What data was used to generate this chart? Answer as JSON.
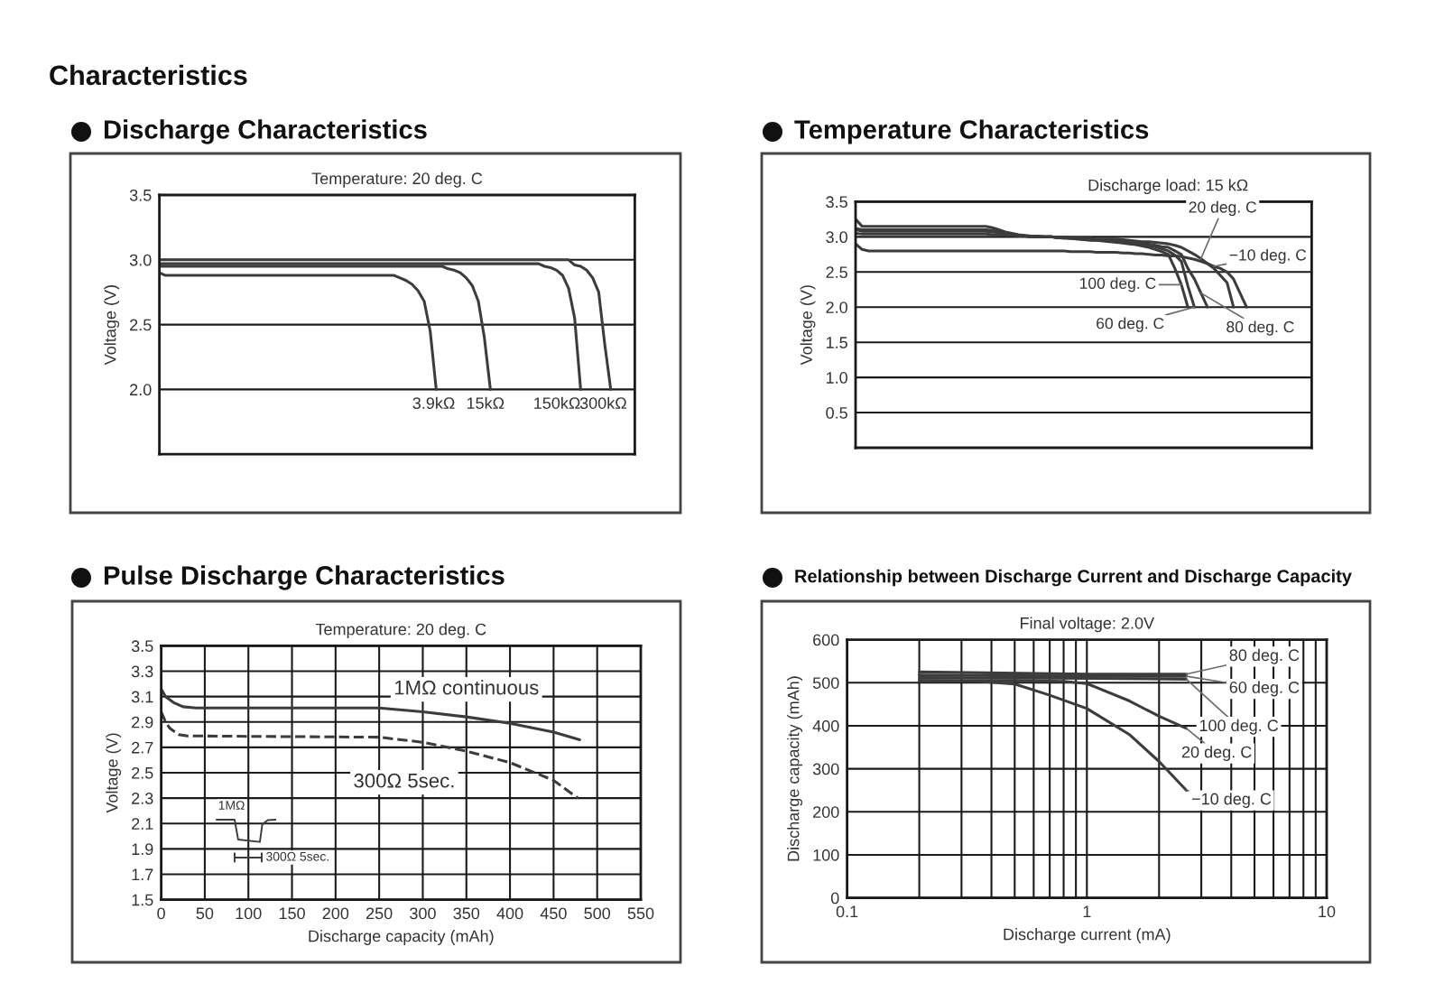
{
  "chart_data": [
    {
      "type": "other",
      "title": "Characteristics"
    },
    {
      "type": "line",
      "title": "Discharge Characteristics",
      "subtitle": "Temperature: 20 deg. C",
      "ylabel": "Voltage (V)",
      "categories": [
        null,
        null,
        null,
        null,
        null,
        null,
        null,
        null,
        null,
        null,
        null,
        null,
        null,
        null,
        null,
        null,
        null,
        null,
        null,
        null,
        null,
        null,
        null,
        null,
        null,
        null,
        null,
        null,
        null,
        null,
        null,
        null,
        null,
        null,
        null,
        null,
        null,
        null,
        null,
        null,
        null,
        null,
        null,
        null,
        null,
        null,
        null,
        null,
        null,
        null,
        null,
        null,
        null,
        null,
        null,
        null,
        null,
        null,
        null,
        null,
        null,
        null,
        null,
        null,
        null,
        null,
        null,
        null,
        null,
        null,
        null,
        null,
        null,
        null,
        null,
        null,
        null,
        null,
        null,
        null
      ],
      "series": [
        {
          "name": "3.9kΩ",
          "color": "#3c3c3c",
          "values": [
            2.9,
            2.88,
            2.88,
            2.88,
            2.88,
            2.88,
            2.88,
            2.88,
            2.88,
            2.88,
            2.88,
            2.88,
            2.88,
            2.88,
            2.88,
            2.88,
            2.88,
            2.88,
            2.88,
            2.88,
            2.88,
            2.88,
            2.88,
            2.88,
            2.88,
            2.88,
            2.88,
            2.88,
            2.88,
            2.88,
            2.88,
            2.88,
            2.88,
            2.88,
            2.88,
            2.88,
            2.88,
            2.88,
            2.88,
            2.88,
            2.86,
            2.84,
            2.81,
            2.76,
            2.68,
            2.45,
            2.0,
            null,
            null,
            null,
            null,
            null,
            null,
            null,
            null,
            null,
            null,
            null,
            null,
            null,
            null,
            null,
            null,
            null,
            null,
            null,
            null,
            null,
            null,
            null,
            null,
            null,
            null,
            null,
            null,
            null,
            null,
            null,
            null,
            null
          ]
        },
        {
          "name": "15kΩ",
          "color": "#3c3c3c",
          "values": [
            2.95,
            2.95,
            2.95,
            2.95,
            2.95,
            2.95,
            2.95,
            2.95,
            2.95,
            2.95,
            2.95,
            2.95,
            2.95,
            2.95,
            2.95,
            2.95,
            2.95,
            2.95,
            2.95,
            2.95,
            2.95,
            2.95,
            2.95,
            2.95,
            2.95,
            2.95,
            2.95,
            2.95,
            2.95,
            2.95,
            2.95,
            2.95,
            2.95,
            2.95,
            2.95,
            2.95,
            2.95,
            2.95,
            2.95,
            2.95,
            2.95,
            2.95,
            2.95,
            2.95,
            2.95,
            2.95,
            2.95,
            2.95,
            2.93,
            2.92,
            2.9,
            2.86,
            2.8,
            2.68,
            2.4,
            2.0,
            null,
            null,
            null,
            null,
            null,
            null,
            null,
            null,
            null,
            null,
            null,
            null,
            null,
            null,
            null,
            null,
            null,
            null,
            null,
            null,
            null,
            null,
            null,
            null
          ]
        },
        {
          "name": "150kΩ",
          "color": "#3c3c3c",
          "values": [
            2.97,
            2.97,
            2.97,
            2.97,
            2.97,
            2.97,
            2.97,
            2.97,
            2.97,
            2.97,
            2.97,
            2.97,
            2.97,
            2.97,
            2.97,
            2.97,
            2.97,
            2.97,
            2.97,
            2.97,
            2.97,
            2.97,
            2.97,
            2.97,
            2.97,
            2.97,
            2.97,
            2.97,
            2.97,
            2.97,
            2.97,
            2.97,
            2.97,
            2.97,
            2.97,
            2.97,
            2.97,
            2.97,
            2.97,
            2.97,
            2.97,
            2.97,
            2.97,
            2.97,
            2.97,
            2.97,
            2.97,
            2.97,
            2.97,
            2.97,
            2.97,
            2.97,
            2.97,
            2.97,
            2.97,
            2.97,
            2.97,
            2.97,
            2.97,
            2.97,
            2.97,
            2.97,
            2.97,
            2.97,
            2.95,
            2.94,
            2.92,
            2.88,
            2.78,
            2.55,
            2.0,
            null,
            null,
            null,
            null,
            null,
            null,
            null,
            null,
            null
          ]
        },
        {
          "name": "300kΩ",
          "color": "#3c3c3c",
          "values": [
            3.0,
            3.0,
            3.0,
            3.0,
            3.0,
            3.0,
            3.0,
            3.0,
            3.0,
            3.0,
            3.0,
            3.0,
            3.0,
            3.0,
            3.0,
            3.0,
            3.0,
            3.0,
            3.0,
            3.0,
            3.0,
            3.0,
            3.0,
            3.0,
            3.0,
            3.0,
            3.0,
            3.0,
            3.0,
            3.0,
            3.0,
            3.0,
            3.0,
            3.0,
            3.0,
            3.0,
            3.0,
            3.0,
            3.0,
            3.0,
            3.0,
            3.0,
            3.0,
            3.0,
            3.0,
            3.0,
            3.0,
            3.0,
            3.0,
            3.0,
            3.0,
            3.0,
            3.0,
            3.0,
            3.0,
            3.0,
            3.0,
            3.0,
            3.0,
            3.0,
            3.0,
            3.0,
            3.0,
            3.0,
            3.0,
            3.0,
            3.0,
            3.0,
            3.0,
            2.96,
            2.95,
            2.92,
            2.86,
            2.75,
            2.35,
            2.0,
            null,
            null,
            null,
            null
          ]
        }
      ],
      "ylim": [
        1.5,
        3.5
      ],
      "yticks": [
        {
          "value": 2,
          "label": "2.0"
        },
        2.5,
        {
          "value": 3,
          "label": "3.0"
        },
        3.5
      ],
      "grid": "y",
      "tick_labels": "y"
    },
    {
      "type": "line",
      "title": "Temperature Characteristics",
      "subtitle": "Discharge load: 15 kΩ",
      "ylabel": "Voltage (V)",
      "categories": [
        null,
        null,
        null,
        null,
        null,
        null,
        null,
        null,
        null,
        null,
        null,
        null,
        null,
        null,
        null,
        null,
        null,
        null,
        null,
        null,
        null,
        null,
        null,
        null,
        null,
        null,
        null,
        null,
        null,
        null,
        null,
        null,
        null,
        null,
        null,
        null,
        null,
        null,
        null,
        null,
        null,
        null,
        null,
        null,
        null,
        null,
        null,
        null,
        null,
        null,
        null,
        null,
        null,
        null,
        null,
        null,
        null,
        null,
        null,
        null,
        null,
        null,
        null,
        null,
        null,
        null,
        null,
        null,
        null,
        null,
        null
      ],
      "series": [
        {
          "name": "20 deg. C",
          "color": "#3c3c3c",
          "values": [
            3.05,
            3.04,
            3.04,
            3.04,
            3.04,
            3.04,
            3.04,
            3.04,
            3.04,
            3.04,
            3.04,
            3.04,
            3.04,
            3.04,
            3.04,
            3.04,
            3.04,
            3.04,
            3.04,
            3.04,
            3.04,
            3.03,
            3.03,
            3.02,
            3.02,
            3.01,
            3.01,
            3.0,
            3.0,
            3.0,
            3.0,
            2.99,
            2.99,
            2.99,
            2.98,
            2.98,
            2.98,
            2.97,
            2.97,
            2.97,
            2.97,
            2.96,
            2.95,
            2.94,
            2.93,
            2.93,
            2.92,
            2.91,
            2.9,
            2.88,
            2.85,
            2.8,
            2.75,
            2.69,
            2.62,
            2.55,
            2.45,
            2.35,
            2.0,
            null,
            null,
            null,
            null,
            null,
            null,
            null,
            null,
            null,
            null,
            null,
            null
          ]
        },
        {
          "name": "−10 deg. C",
          "color": "#3c3c3c",
          "values": [
            2.9,
            2.82,
            2.8,
            2.8,
            2.8,
            2.8,
            2.8,
            2.8,
            2.8,
            2.8,
            2.8,
            2.8,
            2.8,
            2.8,
            2.8,
            2.8,
            2.8,
            2.8,
            2.8,
            2.8,
            2.8,
            2.8,
            2.8,
            2.8,
            2.8,
            2.8,
            2.8,
            2.8,
            2.8,
            2.8,
            2.8,
            2.8,
            2.8,
            2.79,
            2.79,
            2.79,
            2.79,
            2.78,
            2.78,
            2.78,
            2.78,
            2.77,
            2.77,
            2.76,
            2.76,
            2.75,
            2.74,
            2.74,
            2.73,
            2.73,
            2.72,
            2.7,
            2.68,
            2.65,
            2.62,
            2.58,
            2.55,
            2.5,
            2.4,
            2.2,
            2.0,
            null,
            null,
            null,
            null,
            null,
            null,
            null,
            null,
            null,
            null
          ]
        },
        {
          "name": "100 deg. C",
          "color": "#3c3c3c",
          "values": [
            3.25,
            3.15,
            3.15,
            3.15,
            3.15,
            3.15,
            3.15,
            3.15,
            3.15,
            3.15,
            3.15,
            3.15,
            3.15,
            3.15,
            3.15,
            3.15,
            3.15,
            3.15,
            3.15,
            3.15,
            3.15,
            3.13,
            3.1,
            3.07,
            3.05,
            3.03,
            3.02,
            3.01,
            3.01,
            3.0,
            3.0,
            2.99,
            2.98,
            2.98,
            2.97,
            2.96,
            2.95,
            2.95,
            2.94,
            2.93,
            2.92,
            2.91,
            2.9,
            2.89,
            2.87,
            2.85,
            2.82,
            2.79,
            2.75,
            2.55,
            2.32,
            2.0,
            null,
            null,
            null,
            null,
            null,
            null,
            null,
            null,
            null,
            null,
            null,
            null,
            null,
            null,
            null,
            null,
            null,
            null,
            null
          ]
        },
        {
          "name": "60 deg. C",
          "color": "#3c3c3c",
          "values": [
            3.12,
            3.1,
            3.1,
            3.1,
            3.1,
            3.1,
            3.1,
            3.1,
            3.1,
            3.1,
            3.1,
            3.1,
            3.1,
            3.1,
            3.1,
            3.1,
            3.1,
            3.1,
            3.1,
            3.1,
            3.1,
            3.09,
            3.07,
            3.05,
            3.03,
            3.02,
            3.01,
            3.0,
            3.0,
            3.0,
            3.0,
            2.99,
            2.99,
            2.98,
            2.97,
            2.97,
            2.96,
            2.95,
            2.95,
            2.94,
            2.94,
            2.93,
            2.92,
            2.91,
            2.9,
            2.88,
            2.86,
            2.83,
            2.8,
            2.74,
            2.65,
            2.3,
            2.0,
            null,
            null,
            null,
            null,
            null,
            null,
            null,
            null,
            null,
            null,
            null,
            null,
            null,
            null,
            null,
            null,
            null,
            null
          ]
        },
        {
          "name": "80 deg. C",
          "color": "#3c3c3c",
          "values": [
            3.1,
            3.08,
            3.08,
            3.08,
            3.08,
            3.08,
            3.08,
            3.08,
            3.08,
            3.08,
            3.08,
            3.08,
            3.08,
            3.08,
            3.08,
            3.08,
            3.08,
            3.08,
            3.08,
            3.08,
            3.08,
            3.07,
            3.06,
            3.04,
            3.03,
            3.02,
            3.01,
            3.0,
            3.0,
            3.0,
            3.0,
            2.99,
            2.99,
            2.98,
            2.98,
            2.97,
            2.97,
            2.96,
            2.96,
            2.95,
            2.95,
            2.94,
            2.93,
            2.92,
            2.91,
            2.9,
            2.88,
            2.86,
            2.85,
            2.8,
            2.75,
            2.55,
            2.4,
            2.2,
            2.0,
            null,
            null,
            null,
            null,
            null,
            null,
            null,
            null,
            null,
            null,
            null,
            null,
            null,
            null,
            null,
            null
          ]
        }
      ],
      "ylim": [
        0,
        3.5
      ],
      "yticks": [
        0.5,
        {
          "value": 1,
          "label": "1.0"
        },
        1.5,
        {
          "value": 2,
          "label": "2.0"
        },
        2.5,
        {
          "value": 3,
          "label": "3.0"
        },
        3.5
      ],
      "grid": "y",
      "tick_labels": "y"
    },
    {
      "type": "line",
      "title": "Pulse Discharge Characteristics",
      "subtitle": "Temperature: 20 deg. C",
      "xlabel": "Discharge capacity (mAh)",
      "ylabel": "Voltage (V)",
      "series": [
        {
          "name": "1MΩ continuous",
          "color": "#3c3c3c",
          "x": [
            0,
            5,
            15,
            25,
            40,
            250,
            300,
            350,
            400,
            450,
            480
          ],
          "values": [
            3.16,
            3.1,
            3.05,
            3.02,
            3.01,
            3.01,
            2.98,
            2.94,
            2.89,
            2.82,
            2.76
          ]
        },
        {
          "name": "300Ω 5sec.",
          "color": "#3c3c3c",
          "line_style": "dashed",
          "x": [
            0,
            5,
            10,
            20,
            30,
            250,
            300,
            350,
            400,
            450,
            478
          ],
          "values": [
            2.98,
            2.9,
            2.85,
            2.8,
            2.79,
            2.78,
            2.74,
            2.67,
            2.58,
            2.44,
            2.3
          ]
        }
      ],
      "xlim": [
        0,
        550
      ],
      "xticks": [
        0,
        50,
        100,
        150,
        200,
        250,
        300,
        350,
        400,
        450,
        500,
        550
      ],
      "ylim": [
        1.5,
        3.5
      ],
      "yticks": [
        1.5,
        1.7,
        1.9,
        2.1,
        2.3,
        2.5,
        2.7,
        2.9,
        3.1,
        3.3,
        3.5
      ],
      "grid": true,
      "annotations": [
        "1MΩ",
        "300Ω 5sec."
      ]
    },
    {
      "type": "line",
      "title": "Relationship between Discharge Current and Discharge Capacity",
      "subtitle": "Final voltage: 2.0V",
      "xlabel": "Discharge current (mA)",
      "ylabel": "Discharge capacity (mAh)",
      "series": [
        {
          "name": "80 deg. C",
          "color": "#3c3c3c",
          "x": [
            0.2,
            1,
            2.6
          ],
          "values": [
            525,
            520,
            520
          ]
        },
        {
          "name": "60 deg. C",
          "color": "#3c3c3c",
          "x": [
            0.2,
            1,
            2.6
          ],
          "values": [
            518,
            515,
            515
          ]
        },
        {
          "name": "100 deg. C",
          "color": "#3c3c3c",
          "x": [
            0.2,
            1,
            2.6
          ],
          "values": [
            512,
            510,
            508
          ]
        },
        {
          "name": "20 deg. C",
          "color": "#3c3c3c",
          "x": [
            0.2,
            0.5,
            0.8,
            1,
            1.5,
            2,
            2.6
          ],
          "values": [
            505,
            505,
            503,
            498,
            458,
            422,
            394
          ]
        },
        {
          "name": "−10 deg. C",
          "color": "#3c3c3c",
          "x": [
            0.2,
            0.35,
            0.5,
            0.7,
            1,
            1.5,
            2,
            2.6
          ],
          "values": [
            505,
            503,
            497,
            471,
            440,
            380,
            317,
            250
          ]
        }
      ],
      "xlim": [
        0.1,
        10
      ],
      "xticks": [
        0.1,
        {
          "value": 0.2,
          "label": null
        },
        {
          "value": 0.3,
          "label": null
        },
        {
          "value": 0.4,
          "label": null
        },
        {
          "value": 0.5,
          "label": null
        },
        {
          "value": 0.6,
          "label": null
        },
        {
          "value": 0.7,
          "label": null
        },
        {
          "value": 0.8,
          "label": null
        },
        {
          "value": 0.9,
          "label": null
        },
        1,
        {
          "value": 2,
          "label": null
        },
        {
          "value": 3,
          "label": null
        },
        {
          "value": 4,
          "label": null
        },
        {
          "value": 5,
          "label": null
        },
        {
          "value": 6,
          "label": null
        },
        {
          "value": 7,
          "label": null
        },
        {
          "value": 8,
          "label": null
        },
        {
          "value": 9,
          "label": null
        },
        10
      ],
      "ylim": [
        0,
        600
      ],
      "yticks": [
        0,
        100,
        200,
        300,
        400,
        500,
        600
      ],
      "log": "x",
      "grid": true
    }
  ]
}
